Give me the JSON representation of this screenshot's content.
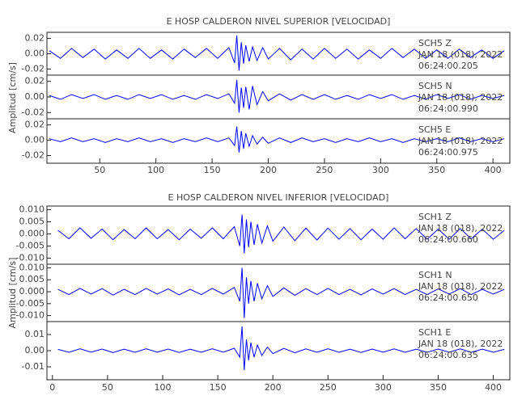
{
  "chart_data": [
    {
      "type": "line",
      "title": "E HOSP CALDERON NIVEL SUPERIOR [VELOCIDAD]",
      "ylabel": "Amplitud [cm/s]",
      "xlim": [
        3,
        415
      ],
      "xticks": [
        50,
        100,
        150,
        200,
        250,
        300,
        350,
        400
      ],
      "color": "#0000ff",
      "x": [
        5,
        15,
        25,
        35,
        45,
        55,
        65,
        75,
        85,
        95,
        105,
        115,
        125,
        135,
        145,
        155,
        165,
        170,
        172,
        174,
        176,
        178,
        180,
        183,
        186,
        190,
        195,
        200,
        210,
        220,
        230,
        240,
        250,
        260,
        270,
        280,
        290,
        300,
        310,
        320,
        330,
        340,
        350,
        360,
        370,
        380,
        390,
        400,
        410
      ],
      "panels": [
        {
          "station": "SCH5   Z",
          "date": "JAN 18 (018), 2022",
          "time": "06:24:00.205",
          "ylim": [
            -0.028,
            0.028
          ],
          "yticks": [
            0.02,
            {
              "value": 0,
              "label": "0.00"
            },
            -0.02
          ],
          "values": [
            0.004,
            -0.006,
            0.007,
            -0.005,
            0.006,
            -0.007,
            0.005,
            -0.006,
            0.007,
            -0.006,
            0.005,
            -0.007,
            0.006,
            -0.005,
            0.007,
            -0.006,
            0.008,
            -0.012,
            0.024,
            -0.022,
            0.015,
            -0.013,
            0.011,
            -0.01,
            0.009,
            -0.009,
            0.008,
            -0.007,
            0.007,
            -0.008,
            0.006,
            -0.007,
            0.007,
            -0.006,
            0.006,
            -0.007,
            0.005,
            -0.006,
            0.007,
            -0.005,
            0.006,
            -0.006,
            0.005,
            -0.006,
            0.006,
            -0.005,
            0.005,
            -0.006,
            0.004
          ]
        },
        {
          "station": "SCH5   N",
          "date": "JAN 18 (018), 2022",
          "time": "06:24:00.990",
          "ylim": [
            -0.028,
            0.028
          ],
          "yticks": [
            0.02,
            {
              "value": 0,
              "label": "0.00"
            },
            -0.02
          ],
          "values": [
            0.002,
            -0.003,
            0.003,
            -0.002,
            0.003,
            -0.003,
            0.002,
            -0.003,
            0.003,
            -0.002,
            0.003,
            -0.003,
            0.002,
            -0.003,
            0.003,
            -0.002,
            0.004,
            -0.008,
            0.022,
            -0.02,
            0.012,
            -0.014,
            0.013,
            -0.016,
            0.014,
            -0.01,
            0.007,
            -0.005,
            0.004,
            -0.004,
            0.003,
            -0.003,
            0.003,
            -0.003,
            0.002,
            -0.003,
            0.003,
            -0.002,
            0.003,
            -0.003,
            0.002,
            -0.003,
            0.003,
            -0.002,
            0.003,
            -0.003,
            0.002,
            -0.002,
            0.002
          ]
        },
        {
          "station": "SCH5   E",
          "date": "JAN 18 (018), 2022",
          "time": "06:24:00.975",
          "ylim": [
            -0.03,
            0.028
          ],
          "yticks": [
            0.02,
            {
              "value": 0,
              "label": "0.00"
            },
            -0.02
          ],
          "values": [
            0.002,
            -0.002,
            0.003,
            -0.002,
            0.002,
            -0.003,
            0.002,
            -0.002,
            0.003,
            -0.002,
            0.002,
            -0.003,
            0.002,
            -0.002,
            0.003,
            -0.002,
            0.003,
            -0.007,
            0.018,
            -0.016,
            0.012,
            -0.011,
            0.009,
            -0.008,
            0.006,
            -0.005,
            0.004,
            -0.004,
            0.003,
            -0.003,
            0.003,
            -0.002,
            0.002,
            -0.003,
            0.002,
            -0.002,
            0.003,
            -0.002,
            0.002,
            -0.003,
            0.002,
            -0.002,
            0.002,
            -0.002,
            0.003,
            -0.002,
            0.002,
            -0.002,
            0.002
          ]
        }
      ]
    },
    {
      "type": "line",
      "title": "E HOSP CALDERON NIVEL INFERIOR [VELOCIDAD]",
      "ylabel": "Amplitud [cm/s]",
      "xlim": [
        -5,
        415
      ],
      "xticks": [
        0,
        50,
        100,
        150,
        200,
        250,
        300,
        350,
        400
      ],
      "color": "#0000ff",
      "x": [
        5,
        15,
        25,
        35,
        45,
        55,
        65,
        75,
        85,
        95,
        105,
        115,
        125,
        135,
        145,
        155,
        165,
        170,
        172,
        174,
        176,
        178,
        180,
        183,
        186,
        190,
        195,
        200,
        210,
        220,
        230,
        240,
        250,
        260,
        270,
        280,
        290,
        300,
        310,
        320,
        330,
        340,
        350,
        360,
        370,
        380,
        390,
        400,
        410
      ],
      "panels": [
        {
          "station": "SCH1   Z",
          "date": "JAN 18 (018), 2022",
          "time": "06:24:00.660",
          "ylim": [
            -0.0125,
            0.0115
          ],
          "yticks": [
            {
              "value": 0.01,
              "label": "0.010"
            },
            0.005,
            {
              "value": 0,
              "label": "0.000"
            },
            -0.005,
            {
              "value": -0.01,
              "label": "-0.010"
            }
          ],
          "values": [
            0.0015,
            -0.002,
            0.0025,
            -0.0018,
            0.002,
            -0.0024,
            0.0018,
            -0.002,
            0.0025,
            -0.002,
            0.0018,
            -0.0024,
            0.002,
            -0.0018,
            0.0025,
            -0.002,
            0.003,
            -0.005,
            0.008,
            -0.008,
            0.006,
            -0.0055,
            0.005,
            -0.0045,
            0.004,
            -0.0038,
            0.0033,
            -0.003,
            0.0028,
            -0.0028,
            0.0024,
            -0.0025,
            0.0024,
            -0.0022,
            0.0022,
            -0.0024,
            0.002,
            -0.0022,
            0.0025,
            -0.002,
            0.0022,
            -0.0022,
            0.002,
            -0.0022,
            0.0022,
            -0.002,
            0.002,
            -0.0022,
            0.0015
          ]
        },
        {
          "station": "SCH1   N",
          "date": "JAN 18 (018), 2022",
          "time": "06:24:00.650",
          "ylim": [
            -0.0125,
            0.0115
          ],
          "yticks": [
            {
              "value": 0.01,
              "label": "0.010"
            },
            0.005,
            {
              "value": 0,
              "label": "0.000"
            },
            -0.005,
            {
              "value": -0.01,
              "label": "-0.010"
            }
          ],
          "values": [
            0.001,
            -0.0012,
            0.0014,
            -0.001,
            0.0013,
            -0.0014,
            0.001,
            -0.0012,
            0.0014,
            -0.001,
            0.0012,
            -0.0013,
            0.001,
            -0.0012,
            0.0014,
            -0.001,
            0.0018,
            -0.004,
            0.01,
            -0.011,
            0.006,
            -0.005,
            0.0045,
            -0.004,
            0.0035,
            -0.003,
            0.0025,
            -0.002,
            0.0016,
            -0.0015,
            0.0013,
            -0.0012,
            0.0014,
            -0.0012,
            0.001,
            -0.0013,
            0.0012,
            -0.001,
            0.0013,
            -0.0012,
            0.001,
            -0.0012,
            0.0012,
            -0.001,
            0.0013,
            -0.0012,
            0.001,
            -0.001,
            0.001
          ]
        },
        {
          "station": "SCH1   E",
          "date": "JAN 18 (018), 2022",
          "time": "06:24:00.635",
          "ylim": [
            -0.018,
            0.018
          ],
          "yticks": [
            0.01,
            {
              "value": 0,
              "label": "0.00"
            },
            -0.01
          ],
          "values": [
            0.0008,
            -0.001,
            0.0012,
            -0.0009,
            0.001,
            -0.0012,
            0.0009,
            -0.001,
            0.0012,
            -0.0009,
            0.001,
            -0.0011,
            0.0009,
            -0.001,
            0.0012,
            -0.0009,
            0.0015,
            -0.004,
            0.015,
            -0.012,
            0.007,
            -0.006,
            0.005,
            -0.004,
            0.0035,
            -0.003,
            0.0022,
            -0.0018,
            0.0014,
            -0.0013,
            0.0011,
            -0.001,
            0.0012,
            -0.001,
            0.0009,
            -0.0011,
            0.001,
            -0.0009,
            0.0011,
            -0.001,
            0.0009,
            -0.001,
            0.001,
            -0.0009,
            0.0011,
            -0.001,
            0.0009,
            -0.0009,
            0.0008
          ]
        }
      ]
    }
  ]
}
